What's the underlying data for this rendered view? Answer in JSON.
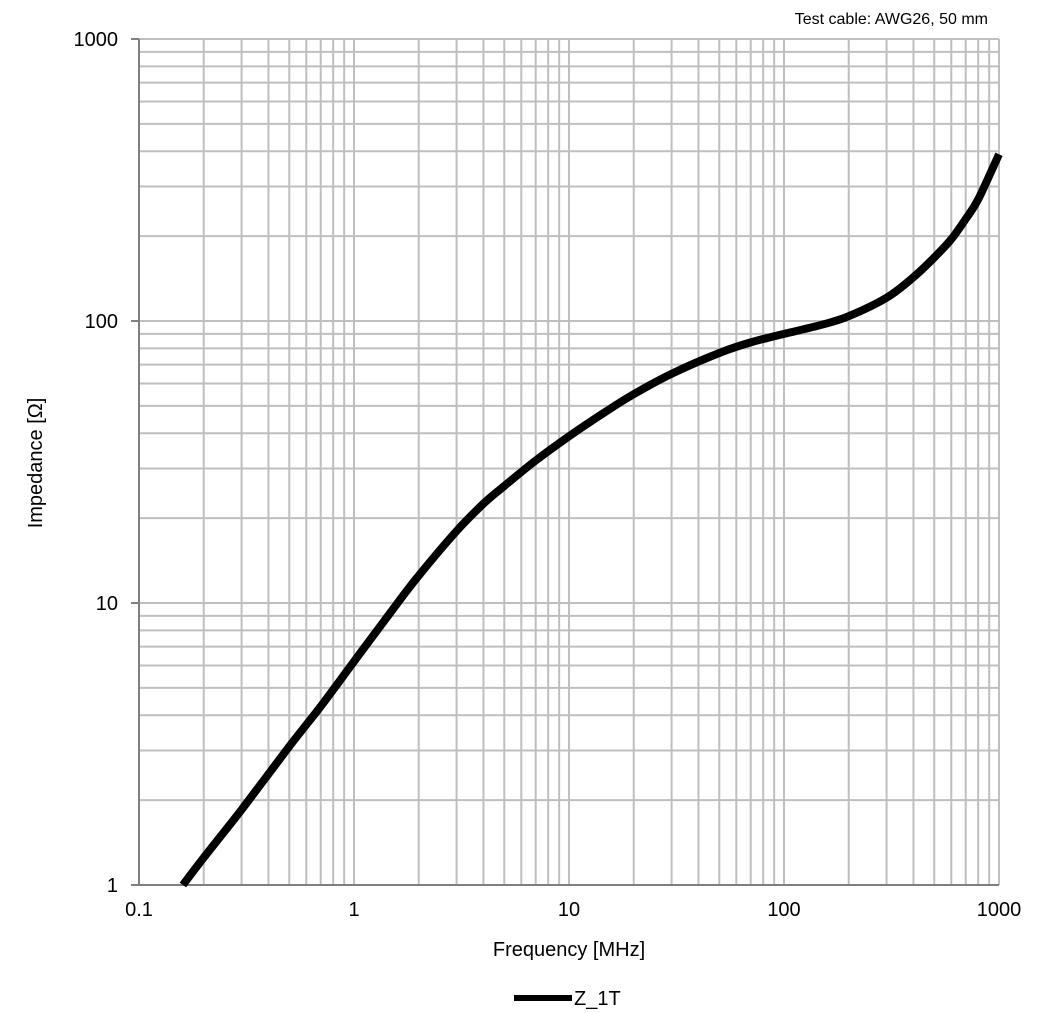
{
  "chart_data": {
    "type": "line",
    "x_scale": "log",
    "y_scale": "log",
    "xlim": [
      0.1,
      1000
    ],
    "ylim": [
      1,
      1000
    ],
    "grid": true,
    "legend_position": "bottom-center",
    "xlabel": "Frequency [MHz]",
    "ylabel": "Impedance [Ω]",
    "annotation": "Test cable: AWG26, 50 mm",
    "x_ticks": [
      {
        "value": 0.1,
        "label": "0.1"
      },
      {
        "value": 1,
        "label": "1"
      },
      {
        "value": 10,
        "label": "10"
      },
      {
        "value": 100,
        "label": "100"
      },
      {
        "value": 1000,
        "label": "1000"
      }
    ],
    "y_ticks": [
      {
        "value": 1,
        "label": "1"
      },
      {
        "value": 10,
        "label": "10"
      },
      {
        "value": 100,
        "label": "100"
      },
      {
        "value": 1000,
        "label": "1000"
      }
    ],
    "series": [
      {
        "name": "Z_1T",
        "color": "#000000",
        "x": [
          0.16,
          0.2,
          0.3,
          0.5,
          0.7,
          1,
          1.5,
          2,
          3,
          4,
          5,
          7,
          10,
          15,
          20,
          30,
          50,
          70,
          100,
          150,
          200,
          300,
          400,
          500,
          600,
          700,
          800,
          1000
        ],
        "y": [
          1.0,
          1.25,
          1.85,
          3.1,
          4.3,
          6.2,
          9.4,
          12.5,
          18,
          22.5,
          26,
          32,
          39,
          48,
          55,
          65,
          77,
          84,
          90,
          97,
          104,
          121,
          143,
          168,
          195,
          230,
          270,
          390
        ]
      }
    ]
  }
}
